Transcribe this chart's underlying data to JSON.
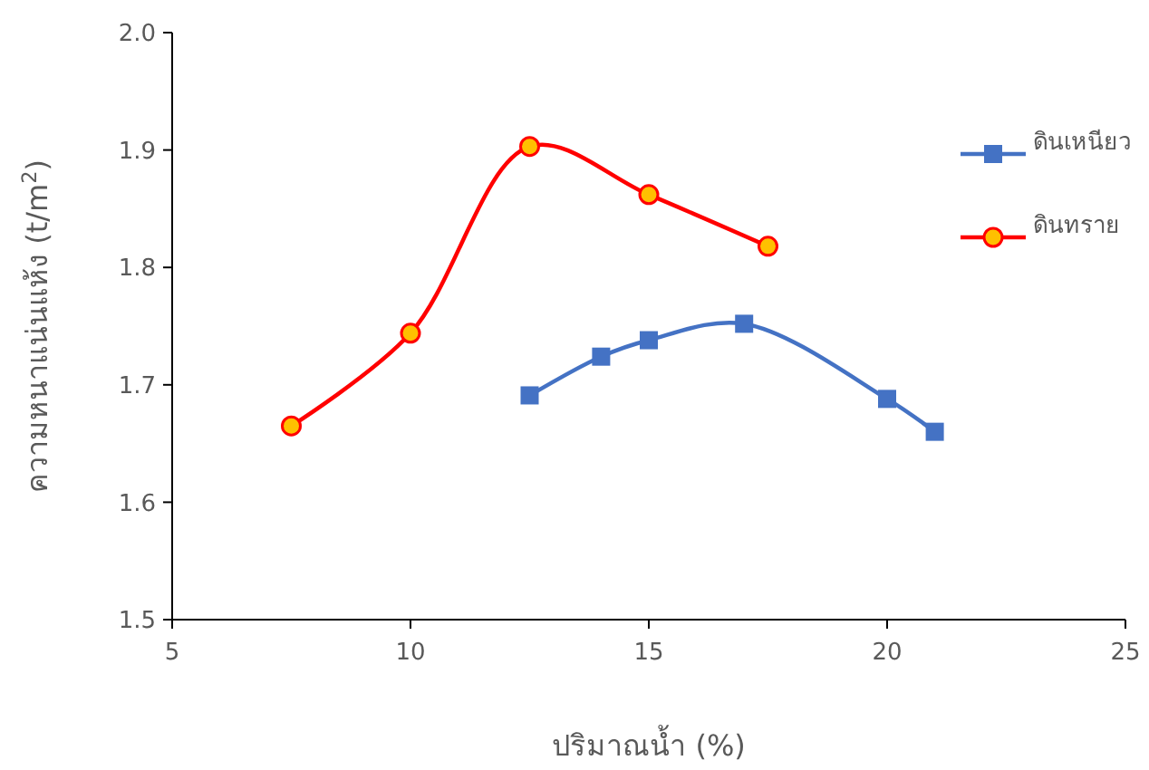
{
  "chart_data": {
    "type": "line",
    "xlabel": "ปริมาณน้ำ (%)",
    "ylabel": "ความหนาแน่นแห้ง (t/m$^{2}$)",
    "xlim": [
      5,
      25
    ],
    "xticks": [
      5,
      10,
      15,
      20,
      25
    ],
    "ylim": [
      1.5,
      2.0
    ],
    "yticks": [
      1.5,
      1.6,
      1.7,
      1.8,
      1.9,
      {
        "value": 2.0,
        "label": "2.0"
      }
    ],
    "grid": false,
    "legend": "right",
    "series": [
      {
        "name": "ดินเหนียว",
        "color": "#4472c4",
        "marker": "square",
        "x": [
          12.5,
          14,
          15,
          17,
          20,
          21
        ],
        "values": [
          1.691,
          1.724,
          1.738,
          1.752,
          1.688,
          1.66
        ]
      },
      {
        "name": "ดินทราย",
        "color": "#ff0000",
        "marker": "circle",
        "x": [
          7.5,
          10,
          12.5,
          15,
          17.5
        ],
        "values": [
          1.665,
          1.744,
          1.903,
          1.862,
          1.818
        ]
      }
    ]
  }
}
